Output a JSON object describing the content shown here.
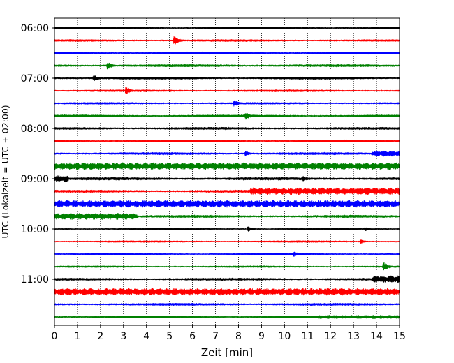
{
  "chart_data": {
    "type": "line",
    "subtype": "helicorder",
    "xlabel": "Zeit  [min]",
    "ylabel": "UTC (Lokalzeit = UTC + 02:00)",
    "xlim": [
      0,
      15
    ],
    "x_ticks": [
      0,
      1,
      2,
      3,
      4,
      5,
      6,
      7,
      8,
      9,
      10,
      11,
      12,
      13,
      14,
      15
    ],
    "y_tick_labels": [
      "06:00",
      "07:00",
      "08:00",
      "09:00",
      "10:00",
      "11:00"
    ],
    "y_tick_trace_index": [
      0,
      4,
      8,
      12,
      16,
      20
    ],
    "minutes_per_trace": 15,
    "grid": {
      "x": "dotted",
      "y": "off"
    },
    "trace_colors": [
      "#000000",
      "#ff0000",
      "#0000ff",
      "#008000"
    ],
    "series": [
      {
        "start": "06:00",
        "noise": 1.4,
        "events": [],
        "bursts": []
      },
      {
        "start": "06:15",
        "noise": 1.3,
        "events": [
          {
            "x": 5.2,
            "amp": 7
          }
        ],
        "bursts": []
      },
      {
        "start": "06:30",
        "noise": 1.5,
        "events": [],
        "bursts": []
      },
      {
        "start": "06:45",
        "noise": 1.6,
        "events": [
          {
            "x": 2.3,
            "amp": 6
          }
        ],
        "bursts": []
      },
      {
        "start": "07:00",
        "noise": 1.5,
        "events": [
          {
            "x": 1.7,
            "amp": 5
          }
        ],
        "bursts": []
      },
      {
        "start": "07:15",
        "noise": 1.3,
        "events": [
          {
            "x": 3.1,
            "amp": 6
          }
        ],
        "bursts": []
      },
      {
        "start": "07:30",
        "noise": 1.2,
        "events": [
          {
            "x": 7.8,
            "amp": 5
          }
        ],
        "bursts": []
      },
      {
        "start": "07:45",
        "noise": 1.4,
        "events": [
          {
            "x": 8.3,
            "amp": 6
          }
        ],
        "bursts": []
      },
      {
        "start": "08:00",
        "noise": 1.5,
        "events": [],
        "bursts": []
      },
      {
        "start": "08:15",
        "noise": 1.4,
        "events": [],
        "bursts": []
      },
      {
        "start": "08:30",
        "noise": 1.5,
        "events": [
          {
            "x": 8.3,
            "amp": 4
          }
        ],
        "bursts": [
          {
            "from": 13.8,
            "to": 15,
            "amp": 4
          }
        ]
      },
      {
        "start": "08:45",
        "noise": 2.0,
        "events": [],
        "bursts": [
          {
            "from": 0,
            "to": 15,
            "amp": 5
          }
        ]
      },
      {
        "start": "09:00",
        "noise": 1.8,
        "events": [
          {
            "x": 10.8,
            "amp": 4
          }
        ],
        "bursts": [
          {
            "from": 0,
            "to": 0.6,
            "amp": 5
          }
        ]
      },
      {
        "start": "09:15",
        "noise": 1.6,
        "events": [],
        "bursts": [
          {
            "from": 8.5,
            "to": 15,
            "amp": 5
          }
        ]
      },
      {
        "start": "09:30",
        "noise": 2.0,
        "events": [],
        "bursts": [
          {
            "from": 0,
            "to": 15,
            "amp": 5
          }
        ]
      },
      {
        "start": "09:45",
        "noise": 1.6,
        "events": [],
        "bursts": [
          {
            "from": 0,
            "to": 3.6,
            "amp": 4.5
          }
        ]
      },
      {
        "start": "10:00",
        "noise": 1.1,
        "events": [
          {
            "x": 8.4,
            "amp": 4
          },
          {
            "x": 13.5,
            "amp": 3
          }
        ],
        "bursts": []
      },
      {
        "start": "10:15",
        "noise": 1.1,
        "events": [
          {
            "x": 13.3,
            "amp": 3
          }
        ],
        "bursts": []
      },
      {
        "start": "10:30",
        "noise": 1.1,
        "events": [
          {
            "x": 10.4,
            "amp": 4
          }
        ],
        "bursts": []
      },
      {
        "start": "10:45",
        "noise": 1.1,
        "events": [
          {
            "x": 14.3,
            "amp": 7
          }
        ],
        "bursts": []
      },
      {
        "start": "11:00",
        "noise": 1.5,
        "events": [],
        "bursts": [
          {
            "from": 13.8,
            "to": 15,
            "amp": 5
          }
        ]
      },
      {
        "start": "11:15",
        "noise": 2.0,
        "events": [],
        "bursts": [
          {
            "from": 0,
            "to": 15,
            "amp": 5
          }
        ]
      },
      {
        "start": "11:30",
        "noise": 1.5,
        "events": [],
        "bursts": []
      },
      {
        "start": "11:45",
        "noise": 1.4,
        "events": [],
        "bursts": [
          {
            "from": 11.5,
            "to": 15,
            "amp": 2.5
          }
        ]
      }
    ]
  }
}
